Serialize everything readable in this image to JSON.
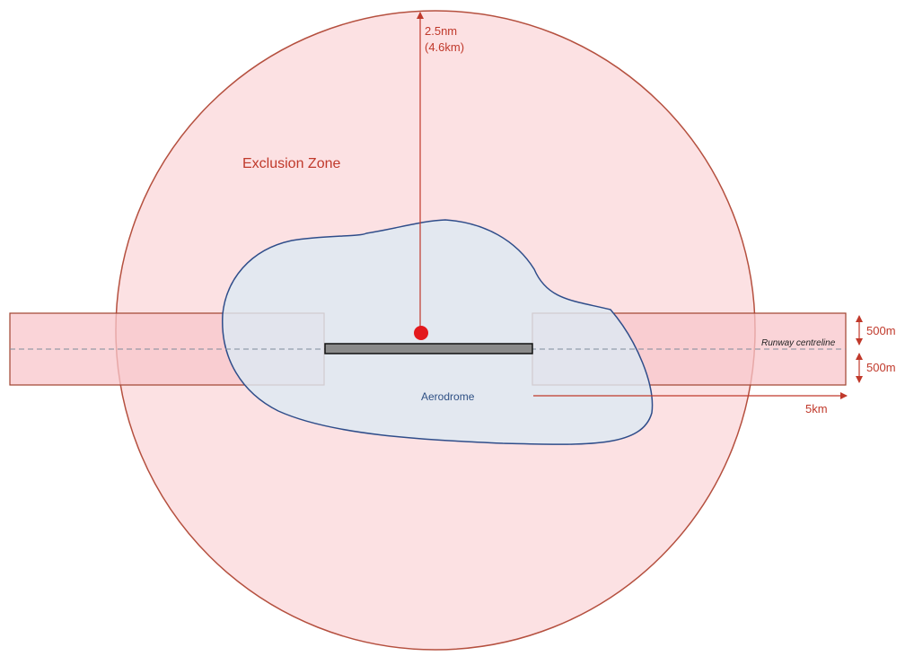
{
  "labels": {
    "exclusion_zone": "Exclusion Zone",
    "radius_nm": "2.5nm",
    "radius_km": "(4.6km)",
    "aerodrome": "Aerodrome",
    "runway_centreline": "Runway centreline",
    "width_upper": "500m",
    "width_lower": "500m",
    "length": "5km"
  },
  "colors": {
    "exclusion_fill": "#fce1e3",
    "exclusion_stroke": "#b5503f",
    "aerodrome_fill": "#dde9f3",
    "aerodrome_stroke": "#2f4d8a",
    "approach_fill": "#f8c5cb",
    "approach_stroke": "#a0432f",
    "annotation": "#c0392b",
    "reference_point": "#e3191d",
    "runway": "#8a8a8a"
  }
}
